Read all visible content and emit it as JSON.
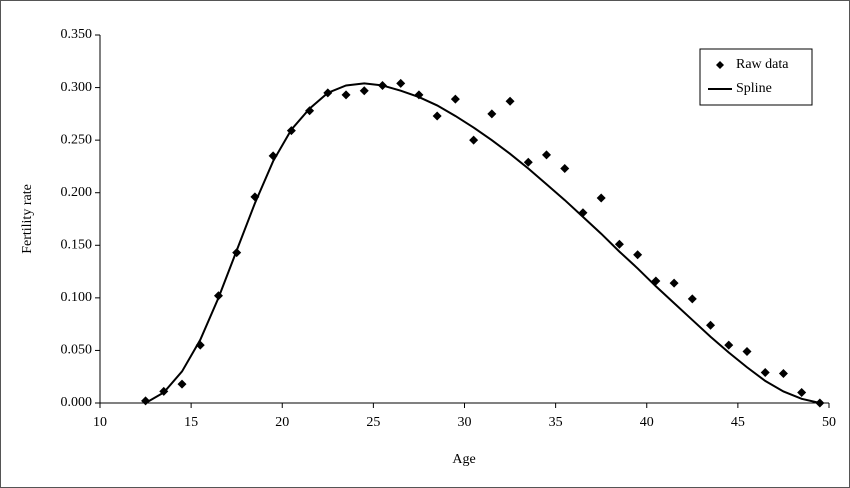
{
  "chart_data": {
    "type": "line",
    "xlabel": "Age",
    "ylabel": "Fertility rate",
    "x": [
      12.5,
      13.5,
      14.5,
      15.5,
      16.5,
      17.5,
      18.5,
      19.5,
      20.5,
      21.5,
      22.5,
      23.5,
      24.5,
      25.5,
      26.5,
      27.5,
      28.5,
      29.5,
      30.5,
      31.5,
      32.5,
      33.5,
      34.5,
      35.5,
      36.5,
      37.5,
      38.5,
      39.5,
      40.5,
      41.5,
      42.5,
      43.5,
      44.5,
      45.5,
      46.5,
      47.5,
      48.5,
      49.5
    ],
    "series": [
      {
        "name": "Raw data",
        "color": "#000000",
        "mode": "markers",
        "values": [
          0.002,
          0.011,
          0.018,
          0.055,
          0.102,
          0.143,
          0.196,
          0.235,
          0.259,
          0.278,
          0.295,
          0.293,
          0.297,
          0.302,
          0.304,
          0.293,
          0.273,
          0.289,
          0.25,
          0.275,
          0.287,
          0.229,
          0.236,
          0.223,
          0.181,
          0.195,
          0.151,
          0.141,
          0.116,
          0.114,
          0.099,
          0.074,
          0.055,
          0.049,
          0.029,
          0.028,
          0.01,
          0.0
        ]
      },
      {
        "name": "Spline",
        "color": "#000000",
        "mode": "line",
        "values": [
          0.0,
          0.01,
          0.03,
          0.06,
          0.1,
          0.145,
          0.19,
          0.23,
          0.26,
          0.28,
          0.295,
          0.302,
          0.304,
          0.302,
          0.297,
          0.291,
          0.283,
          0.273,
          0.262,
          0.25,
          0.237,
          0.223,
          0.208,
          0.193,
          0.177,
          0.161,
          0.144,
          0.128,
          0.111,
          0.095,
          0.079,
          0.063,
          0.048,
          0.034,
          0.021,
          0.011,
          0.004,
          0.0
        ]
      }
    ],
    "xlim": [
      10,
      50
    ],
    "xticks": [
      10,
      15,
      20,
      25,
      30,
      35,
      40,
      45,
      50
    ],
    "ylim": [
      0,
      0.35
    ],
    "yticks": [
      {
        "value": 0,
        "label": "0.000"
      },
      {
        "value": 0.05,
        "label": "0.050"
      },
      {
        "value": 0.1,
        "label": "0.100"
      },
      {
        "value": 0.15,
        "label": "0.150"
      },
      {
        "value": 0.2,
        "label": "0.200"
      },
      {
        "value": 0.25,
        "label": "0.250"
      },
      {
        "value": 0.3,
        "label": "0.300"
      },
      {
        "value": 0.35,
        "label": "0.350"
      }
    ],
    "grid": false,
    "legend": "upper right"
  }
}
